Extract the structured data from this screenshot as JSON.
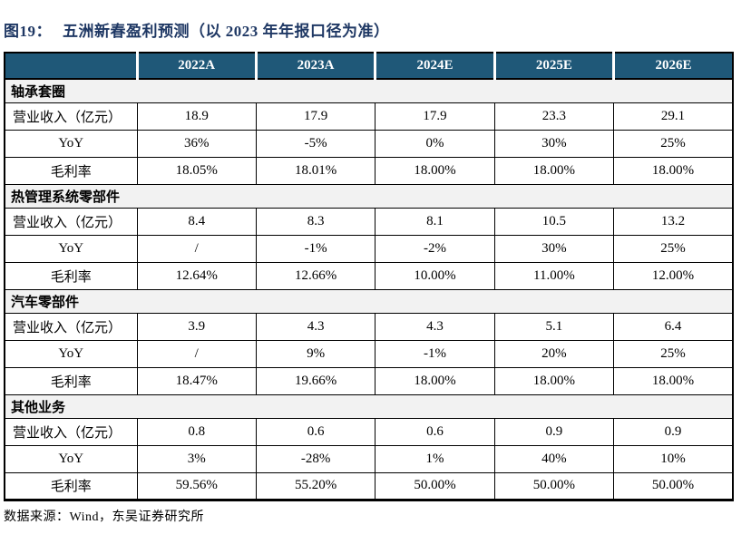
{
  "title": {
    "label": "图19：",
    "text": "五洲新春盈利预测（以 2023 年年报口径为准）"
  },
  "footer": "数据来源：Wind，东吴证券研究所",
  "colors": {
    "header_bg": "#1F5878",
    "title_color": "#1F3864",
    "section_bg": "#F2F2F2",
    "border": "#000000"
  },
  "table": {
    "columns": [
      "",
      "2022A",
      "2023A",
      "2024E",
      "2025E",
      "2026E"
    ],
    "sections": [
      {
        "name": "轴承套圈",
        "rows": [
          {
            "label": "营业收入（亿元）",
            "values": [
              "18.9",
              "17.9",
              "17.9",
              "23.3",
              "29.1"
            ]
          },
          {
            "label": "YoY",
            "values": [
              "36%",
              "-5%",
              "0%",
              "30%",
              "25%"
            ]
          },
          {
            "label": "毛利率",
            "values": [
              "18.05%",
              "18.01%",
              "18.00%",
              "18.00%",
              "18.00%"
            ]
          }
        ]
      },
      {
        "name": "热管理系统零部件",
        "rows": [
          {
            "label": "营业收入（亿元）",
            "values": [
              "8.4",
              "8.3",
              "8.1",
              "10.5",
              "13.2"
            ]
          },
          {
            "label": "YoY",
            "values": [
              "/",
              "-1%",
              "-2%",
              "30%",
              "25%"
            ]
          },
          {
            "label": "毛利率",
            "values": [
              "12.64%",
              "12.66%",
              "10.00%",
              "11.00%",
              "12.00%"
            ]
          }
        ]
      },
      {
        "name": "汽车零部件",
        "rows": [
          {
            "label": "营业收入（亿元）",
            "values": [
              "3.9",
              "4.3",
              "4.3",
              "5.1",
              "6.4"
            ]
          },
          {
            "label": "YoY",
            "values": [
              "/",
              "9%",
              "-1%",
              "20%",
              "25%"
            ]
          },
          {
            "label": "毛利率",
            "values": [
              "18.47%",
              "19.66%",
              "18.00%",
              "18.00%",
              "18.00%"
            ]
          }
        ]
      },
      {
        "name": "其他业务",
        "rows": [
          {
            "label": "营业收入（亿元）",
            "values": [
              "0.8",
              "0.6",
              "0.6",
              "0.9",
              "0.9"
            ]
          },
          {
            "label": "YoY",
            "values": [
              "3%",
              "-28%",
              "1%",
              "40%",
              "10%"
            ]
          },
          {
            "label": "毛利率",
            "values": [
              "59.56%",
              "55.20%",
              "50.00%",
              "50.00%",
              "50.00%"
            ]
          }
        ]
      }
    ]
  }
}
